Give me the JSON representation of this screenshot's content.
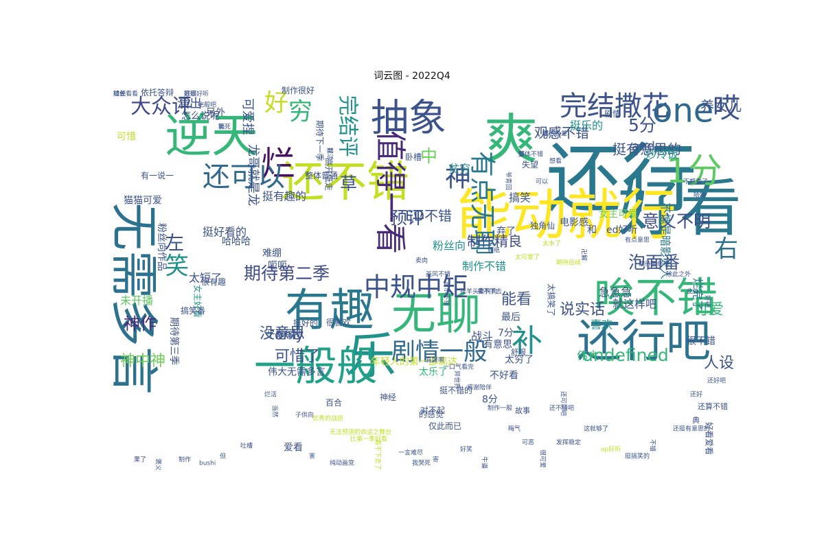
{
  "title": "词云图 - 2022Q4",
  "words": [
    {
      "t": "还行",
      "c": "#2a788e"
    },
    {
      "t": "好看",
      "c": "#2a788e"
    },
    {
      "t": "能动就行",
      "c": "#fde725"
    },
    {
      "t": "爽",
      "c": "#35b779"
    },
    {
      "t": "逆天",
      "c": "#35b779"
    },
    {
      "t": "还不错",
      "c": "#c2df23"
    },
    {
      "t": "有趣",
      "c": "#2a788e"
    },
    {
      "t": "无聊",
      "c": "#35b779"
    },
    {
      "t": "无需多言",
      "c": "#2c728e"
    },
    {
      "t": "抽象",
      "c": "#3b528b"
    },
    {
      "t": "乐",
      "c": "#21918c"
    },
    {
      "t": "一般般",
      "c": "#1fa187"
    },
    {
      "t": "还行吧",
      "c": "#2c728e"
    },
    {
      "t": "唉不错",
      "c": "#35b779"
    },
    {
      "t": "完结撒花",
      "c": "#3b528b"
    },
    {
      "t": "one",
      "c": "#31688e"
    },
    {
      "t": "烂",
      "c": "#471063"
    },
    {
      "t": "值得一看",
      "c": "#482878"
    },
    {
      "t": "神",
      "c": "#3b528b"
    },
    {
      "t": "补",
      "c": "#21918c"
    },
    {
      "t": "1分",
      "c": "#5ec962"
    },
    {
      "t": "有点无聊",
      "c": "#2a788e"
    },
    {
      "t": "中规中矩",
      "c": "#3b528b"
    },
    {
      "t": "剧情一般",
      "c": "#31688e"
    },
    {
      "t": "完结评",
      "c": "#21918c"
    },
    {
      "t": "还可以",
      "c": "#31688e"
    },
    {
      "t": "笑",
      "c": "#21918c"
    },
    {
      "t": "右",
      "c": "#2c728e"
    },
    {
      "t": "左",
      "c": "#3b528b"
    },
    {
      "t": "哎",
      "c": "#3b528b"
    },
    {
      "t": "大众评",
      "c": "#3e4989"
    },
    {
      "t": "好",
      "c": "#c2df23"
    },
    {
      "t": "穷",
      "c": "#35b779"
    },
    {
      "t": "草",
      "c": "#3b528b"
    },
    {
      "t": "中",
      "c": "#6ece58"
    },
    {
      "t": "预评",
      "c": "#3b528b"
    },
    {
      "t": "5分",
      "c": "#3b528b"
    },
    {
      "t": "意义不明",
      "c": "#3e4989"
    },
    {
      "t": "期待第二季",
      "c": "#3e4989"
    },
    {
      "t": "undefined",
      "c": "#35b779"
    },
    {
      "t": "泡面番",
      "c": "#3b528b"
    },
    {
      "t": "能看",
      "c": "#3b528b"
    },
    {
      "t": "可爱",
      "c": "#35b779"
    },
    {
      "t": "说实话",
      "c": "#3b528b"
    },
    {
      "t": "神作",
      "c": "#482878"
    },
    {
      "t": "神中神",
      "c": "#6ece58"
    },
    {
      "t": "没意思",
      "c": "#3b528b"
    },
    {
      "t": "可惜了",
      "c": "#3b528b"
    },
    {
      "t": "人设",
      "c": "#3b528b"
    },
    {
      "t": "only",
      "c": "#3b528b"
    },
    {
      "t": "ED不错",
      "c": "#3b528b"
    },
    {
      "t": "制作精良",
      "c": "#3e4989"
    },
    {
      "t": "养女儿",
      "c": "#3b528b"
    },
    {
      "t": "观感不错",
      "c": "#3b528b"
    },
    {
      "t": "挺有意思的",
      "c": "#3b528b"
    },
    {
      "t": "挺乐的",
      "c": "#21918c"
    },
    {
      "t": "and",
      "c": "#3b528b"
    },
    {
      "t": "演出",
      "c": "#3b528b"
    },
    {
      "t": "可爱捏",
      "c": "#3b528b"
    },
    {
      "t": "龙哥就是龙",
      "c": "#3b528b"
    },
    {
      "t": "挺有趣的",
      "c": "#3b528b"
    },
    {
      "t": "挺好看的",
      "c": "#3b528b"
    },
    {
      "t": "搞笑",
      "c": "#3b528b"
    },
    {
      "t": "贫穷",
      "c": "#21918c"
    },
    {
      "t": "粉丝向",
      "c": "#21918c"
    },
    {
      "t": "太短了",
      "c": "#3b528b"
    },
    {
      "t": "未开播",
      "c": "#5ec962"
    },
    {
      "t": "战斗",
      "c": "#3b528b"
    },
    {
      "t": "伟大",
      "c": "#35b779"
    },
    {
      "t": "不愧是暗影大人",
      "c": "#2a788e"
    },
    {
      "t": "炒冷饭",
      "c": "#21918c"
    },
    {
      "t": "制作不错",
      "c": "#21918c"
    },
    {
      "t": "急急急",
      "c": "#3b528b"
    },
    {
      "t": "就这样吧",
      "c": "#3b528b"
    },
    {
      "t": "喜欢",
      "c": "#21918c"
    },
    {
      "t": "最后",
      "c": "#3b528b"
    },
    {
      "t": "7分",
      "c": "#3b528b"
    },
    {
      "t": "烂完了",
      "c": "#2c728e"
    },
    {
      "t": "很不错",
      "c": "#3b528b"
    },
    {
      "t": "年轻人的第一部高达",
      "c": "#c2df23"
    },
    {
      "t": "不好看",
      "c": "#3b528b"
    },
    {
      "t": "有意思",
      "c": "#3b528b"
    },
    {
      "t": "太穷了",
      "c": "#3b528b"
    },
    {
      "t": "太乐了",
      "c": "#35b779"
    },
    {
      "t": "8分",
      "c": "#3b528b"
    },
    {
      "t": "伟大无需多言",
      "c": "#3b528b"
    },
    {
      "t": "爱看",
      "c": "#3b528b"
    },
    {
      "t": "女主可爱",
      "c": "#6ece58"
    },
    {
      "t": "电影感",
      "c": "#3b528b"
    },
    {
      "t": "和",
      "c": "#3b528b"
    },
    {
      "t": "ed好听",
      "c": "#3b528b"
    },
    {
      "t": "弃了",
      "c": "#3b528b"
    },
    {
      "t": "猫猫可爱",
      "c": "#3b528b"
    },
    {
      "t": "可惜",
      "c": "#c2df23"
    },
    {
      "t": "另外",
      "c": "#3b528b"
    },
    {
      "t": "怎么说呢",
      "c": "#3b528b"
    },
    {
      "t": "期待第三季",
      "c": "#3b528b"
    },
    {
      "t": "粉丝向作品",
      "c": "#3b528b"
    },
    {
      "t": "呃呃",
      "c": "#3b528b"
    },
    {
      "t": "难绷",
      "c": "#3b528b"
    },
    {
      "t": "哈哈哈",
      "c": "#3b528b"
    },
    {
      "t": "平稳落地",
      "c": "#3b528b"
    },
    {
      "t": "依托答辩",
      "c": "#3b528b"
    },
    {
      "t": "制作很好",
      "c": "#3b528b"
    },
    {
      "t": "有一说一",
      "c": "#3b528b"
    },
    {
      "t": "整体普通",
      "c": "#3b528b"
    },
    {
      "t": "高开低走",
      "c": "#3b528b"
    },
    {
      "t": "期待下一季",
      "c": "#3b528b"
    },
    {
      "t": "好看爱看",
      "c": "#3b528b"
    },
    {
      "t": "女主好看",
      "c": "#21918c"
    },
    {
      "t": "搞笑番",
      "c": "#3b528b"
    },
    {
      "t": "太搞笑了",
      "c": "#3b528b"
    },
    {
      "t": "失望",
      "c": "#3b528b"
    },
    {
      "t": "独角仙",
      "c": "#3b528b"
    },
    {
      "t": "神经",
      "c": "#3b528b"
    },
    {
      "t": "百合",
      "c": "#3b528b"
    },
    {
      "t": "剧情",
      "c": "#3b528b"
    },
    {
      "t": "卧槽",
      "c": "#3b528b"
    },
    {
      "t": "很有趣",
      "c": "#3b528b"
    },
    {
      "t": "挺好的",
      "c": "#3b528b"
    },
    {
      "t": "很喜欢",
      "c": "#3b528b"
    },
    {
      "t": "挺不错的",
      "c": "#3b528b"
    },
    {
      "t": "仅此而已",
      "c": "#3b528b"
    },
    {
      "t": "的感觉",
      "c": "#3b528b"
    },
    {
      "t": "对不起",
      "c": "#3b528b"
    },
    {
      "t": "典",
      "c": "#3b528b"
    },
    {
      "t": "还算不错",
      "c": "#3b528b"
    },
    {
      "t": "故事",
      "c": "#3b528b"
    },
    {
      "t": "舒服",
      "c": "#3b528b"
    },
    {
      "t": "成长",
      "c": "#3b528b"
    },
    {
      "t": "歌很好听",
      "c": "#3b528b"
    },
    {
      "t": "一般吧",
      "c": "#3b528b"
    },
    {
      "t": "笑死",
      "c": "#3b528b"
    },
    {
      "t": "好活",
      "c": "#3b528b"
    },
    {
      "t": "观感极差",
      "c": "#3b528b"
    },
    {
      "t": "整体不错",
      "c": "#3b528b"
    },
    {
      "t": "想看",
      "c": "#3b528b"
    },
    {
      "t": "可以",
      "c": "#3b528b"
    },
    {
      "t": "爷青回",
      "c": "#3b528b"
    },
    {
      "t": "厕纸",
      "c": "#3b528b"
    },
    {
      "t": "太可爱了",
      "c": "#c2df23"
    },
    {
      "t": "太水了",
      "c": "#c2df23"
    },
    {
      "t": "期待后续",
      "c": "#c2df23"
    },
    {
      "t": "卍解",
      "c": "#3b528b"
    },
    {
      "t": "有点意思",
      "c": "#3b528b"
    },
    {
      "t": "期待最终季",
      "c": "#3b528b"
    },
    {
      "t": "除此之外",
      "c": "#3b528b"
    },
    {
      "t": "此外",
      "c": "#3b528b"
    },
    {
      "t": "好吧",
      "c": "#3b528b"
    },
    {
      "t": "不想看了",
      "c": "#3b528b"
    },
    {
      "t": "哈哈",
      "c": "#3b528b"
    },
    {
      "t": "卖肉",
      "c": "#3b528b"
    },
    {
      "t": "画风不错",
      "c": "#3b528b"
    },
    {
      "t": "音乐不错",
      "c": "#3b528b"
    },
    {
      "t": "挂羊头卖狗肉",
      "c": "#3b528b"
    },
    {
      "t": "看不下去",
      "c": "#3b528b"
    },
    {
      "t": "真好啊",
      "c": "#3b528b"
    },
    {
      "t": "一口气看完",
      "c": "#3b528b"
    },
    {
      "t": "异世界",
      "c": "#3b528b"
    },
    {
      "t": "感谢陪伴",
      "c": "#3b528b"
    },
    {
      "t": "制作一般",
      "c": "#3b528b"
    },
    {
      "t": "晦气",
      "c": "#3b528b"
    },
    {
      "t": "可恶",
      "c": "#3b528b"
    },
    {
      "t": "很可爱",
      "c": "#3b528b"
    },
    {
      "t": "发挥稳定",
      "c": "#3b528b"
    },
    {
      "t": "这就够了",
      "c": "#3b528b"
    },
    {
      "t": "op好听",
      "c": "#c2df23"
    },
    {
      "t": "挺搞笑的",
      "c": "#3b528b"
    },
    {
      "t": "不错",
      "c": "#3b528b"
    },
    {
      "t": "还挺有意思的",
      "c": "#3b528b"
    },
    {
      "t": "还好",
      "c": "#3b528b"
    },
    {
      "t": "还好吧",
      "c": "#3b528b"
    },
    {
      "t": "烂活",
      "c": "#3b528b"
    },
    {
      "t": "当然",
      "c": "#3b528b"
    },
    {
      "t": "子供向",
      "c": "#3b528b"
    },
    {
      "t": "优秀的战损",
      "c": "#c2df23"
    },
    {
      "t": "无法预测的命运之舞台",
      "c": "#c2df23"
    },
    {
      "t": "比第一季好看",
      "c": "#c2df23"
    },
    {
      "t": "看不下去了",
      "c": "#c2df23"
    },
    {
      "t": "一言难尽",
      "c": "#3b528b"
    },
    {
      "t": "我哭死",
      "c": "#3b528b"
    },
    {
      "t": "寄",
      "c": "#3b528b"
    },
    {
      "t": "好笑",
      "c": "#3b528b"
    },
    {
      "t": "牛逼",
      "c": "#3b528b"
    },
    {
      "t": "吐槽",
      "c": "#3b528b"
    },
    {
      "t": "但",
      "c": "#3b528b"
    },
    {
      "t": "bushi",
      "c": "#3b528b"
    },
    {
      "t": "制作",
      "c": "#3b528b"
    },
    {
      "t": "褒义",
      "c": "#3b528b"
    },
    {
      "t": "果了",
      "c": "#3b528b"
    },
    {
      "t": "害",
      "c": "#3b528b"
    },
    {
      "t": "纯动画党",
      "c": "#3b528b"
    },
    {
      "t": "还不错吧",
      "c": "#3b528b"
    },
    {
      "t": "还可以吧",
      "c": "#3b528b"
    },
    {
      "t": "随便看看",
      "c": "#3b528b"
    },
    {
      "t": "好耶",
      "c": "#3b528b"
    },
    {
      "t": "吃",
      "c": "#3b528b"
    },
    {
      "t": "额",
      "c": "#3b528b"
    },
    {
      "t": "就",
      "c": "#3b528b"
    },
    {
      "t": "喵",
      "c": "#3b528b"
    },
    {
      "t": "蚌",
      "c": "#3b528b"
    }
  ]
}
